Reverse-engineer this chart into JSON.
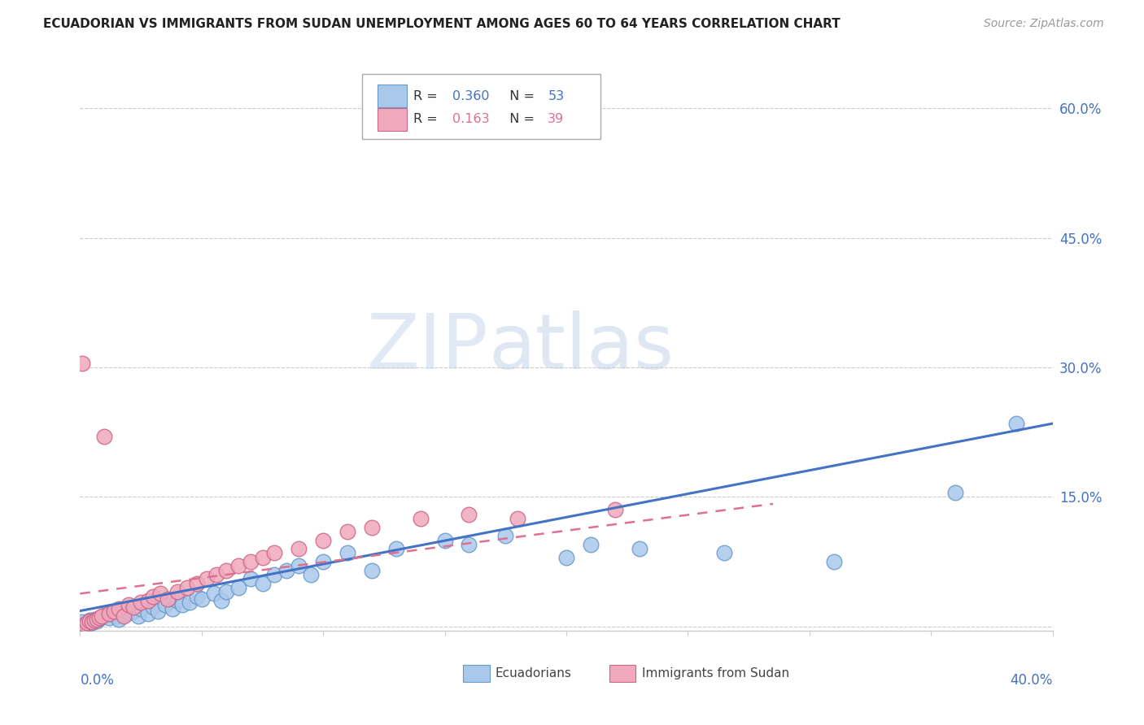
{
  "title": "ECUADORIAN VS IMMIGRANTS FROM SUDAN UNEMPLOYMENT AMONG AGES 60 TO 64 YEARS CORRELATION CHART",
  "source": "Source: ZipAtlas.com",
  "xlim": [
    0.0,
    0.4
  ],
  "ylim": [
    -0.005,
    0.65
  ],
  "ytick_vals": [
    0.0,
    0.15,
    0.3,
    0.45,
    0.6
  ],
  "ytick_labels": [
    "",
    "15.0%",
    "30.0%",
    "45.0%",
    "60.0%"
  ],
  "watermark_zip": "ZIP",
  "watermark_atlas": "atlas",
  "ecu_color": "#aac8ea",
  "ecu_edge": "#6699cc",
  "sudan_color": "#f0a8bc",
  "sudan_edge": "#cc6688",
  "ecu_line_color": "#4472c4",
  "sudan_line_color": "#e07090",
  "grid_color": "#cccccc",
  "background_color": "#ffffff",
  "axis_label_color": "#4472c4",
  "legend_R1": "0.360",
  "legend_N1": "53",
  "legend_R2": "0.163",
  "legend_N2": "39",
  "ecu_trend_x0": 0.0,
  "ecu_trend_y0": 0.018,
  "ecu_trend_x1": 0.4,
  "ecu_trend_y1": 0.235,
  "sud_trend_x0": 0.0,
  "sud_trend_y0": 0.038,
  "sud_trend_x1": 0.285,
  "sud_trend_y1": 0.142
}
